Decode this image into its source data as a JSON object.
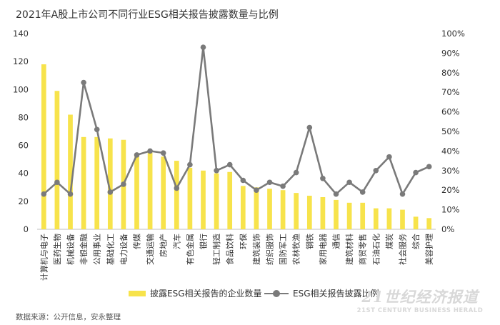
{
  "title": "2021年A股上市公司不同行业ESG相关报告披露数量与比例",
  "source": "数据来源：公开信息，安永整理",
  "watermark": {
    "cn": "21世纪经济报道",
    "en": "21ST CENTURY BUSINESS HERALD"
  },
  "legend": {
    "bar": "披露ESG相关报告的企业数量",
    "line": "ESG相关报告披露比例"
  },
  "colors": {
    "bar": "#f7e34b",
    "line": "#7a7a7a"
  },
  "chart_data": {
    "type": "bar+line",
    "categories": [
      "计算机与电子",
      "医药生物",
      "机械设备",
      "非银金融",
      "公用事业",
      "基础化工",
      "电力设备",
      "传媒",
      "交通运输",
      "房地产",
      "汽车",
      "有色金属",
      "银行",
      "轻工制造",
      "食品饮料",
      "环保",
      "建筑装饰",
      "纺织服饰",
      "国防军工",
      "农林牧渔",
      "钢铁",
      "家用电器",
      "通信",
      "建筑材料",
      "商贸零售",
      "石油石化",
      "煤炭",
      "社会服务",
      "综合",
      "美容护理"
    ],
    "series": [
      {
        "name": "披露ESG相关报告的企业数量",
        "type": "bar",
        "axis": "left",
        "values": [
          118,
          99,
          82,
          66,
          66,
          65,
          64,
          53,
          55,
          52,
          49,
          44,
          42,
          40,
          41,
          31,
          30,
          29,
          28,
          26,
          24,
          23,
          21,
          19,
          19,
          15,
          15,
          14,
          9,
          8
        ]
      },
      {
        "name": "ESG相关报告披露比例",
        "type": "line",
        "axis": "right",
        "unit": "%",
        "values": [
          18,
          24,
          18,
          75,
          51,
          19,
          23,
          38,
          40,
          39,
          21,
          33,
          93,
          30,
          33,
          25,
          20,
          24,
          22,
          29,
          52,
          26,
          18,
          24,
          19,
          30,
          37,
          18,
          29,
          32
        ]
      }
    ],
    "y_left": {
      "min": 0,
      "max": 140,
      "step": 20
    },
    "y_right": {
      "min": 0,
      "max": 100,
      "step": 10,
      "format": "percent"
    },
    "legend_position": "bottom",
    "grid": false
  }
}
